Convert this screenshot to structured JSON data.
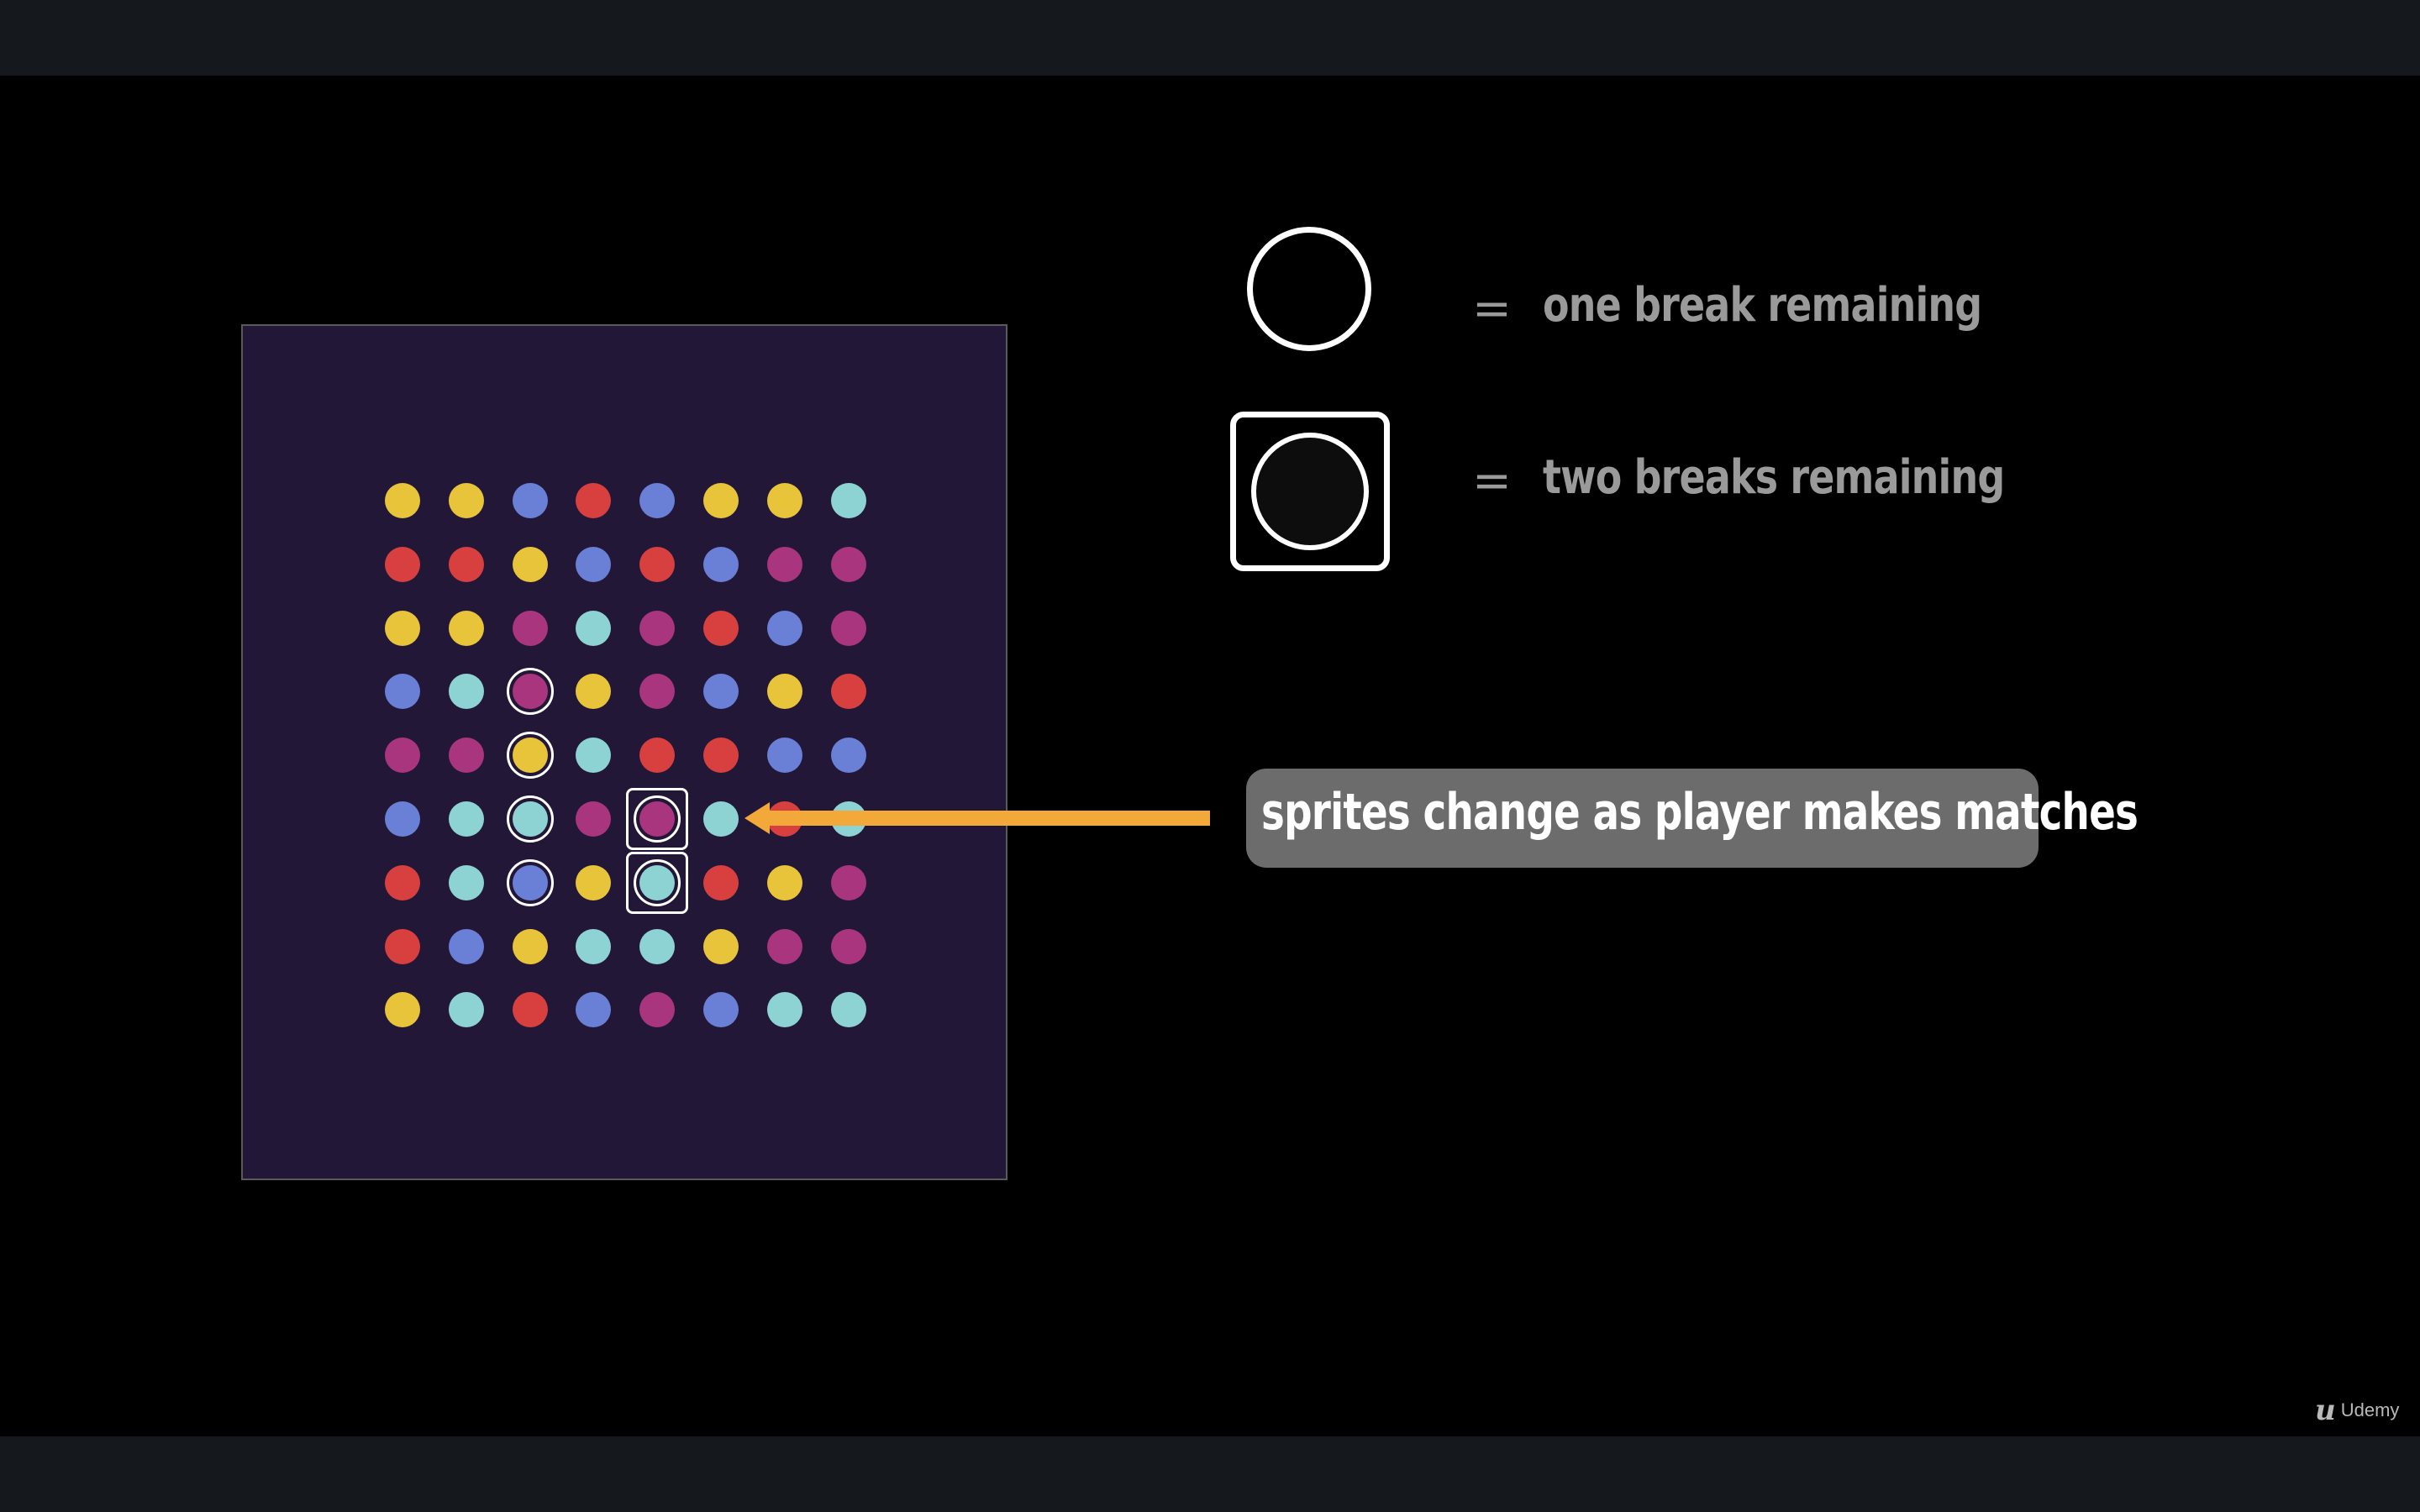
{
  "legend": {
    "one_break": {
      "equals": "=",
      "label": "one break remaining"
    },
    "two_breaks": {
      "equals": "=",
      "label": "two breaks remaining"
    }
  },
  "callout": {
    "text": "sprites change as player makes matches"
  },
  "watermark": {
    "icon": "udemy-logo-icon",
    "text": "Udemy"
  },
  "colors": {
    "Y": "#e8c43a",
    "R": "#d84040",
    "B": "#6a7fd6",
    "M": "#a8357e",
    "C": "#8ed3d3",
    "board": "#231737",
    "arrow": "#f3a83a",
    "callout_bg": "#6c6c6c"
  },
  "board": {
    "grid": [
      [
        "Y",
        "Y",
        "B",
        "R",
        "B",
        "Y",
        "Y",
        "C"
      ],
      [
        "R",
        "R",
        "Y",
        "B",
        "R",
        "B",
        "M",
        "M"
      ],
      [
        "Y",
        "Y",
        "M",
        "C",
        "M",
        "R",
        "B",
        "M"
      ],
      [
        "B",
        "C",
        "M",
        "Y",
        "M",
        "B",
        "Y",
        "R"
      ],
      [
        "M",
        "M",
        "Y",
        "C",
        "R",
        "R",
        "B",
        "B"
      ],
      [
        "B",
        "C",
        "C",
        "M",
        "M",
        "C",
        "R",
        "C"
      ],
      [
        "R",
        "C",
        "B",
        "Y",
        "C",
        "R",
        "Y",
        "M"
      ],
      [
        "R",
        "B",
        "Y",
        "C",
        "C",
        "Y",
        "M",
        "M"
      ],
      [
        "Y",
        "C",
        "R",
        "B",
        "M",
        "B",
        "C",
        "C"
      ]
    ],
    "ringed": [
      [
        3,
        2
      ],
      [
        4,
        2
      ],
      [
        5,
        2
      ],
      [
        6,
        2
      ]
    ],
    "squared": [
      [
        5,
        4
      ],
      [
        6,
        4
      ]
    ]
  }
}
